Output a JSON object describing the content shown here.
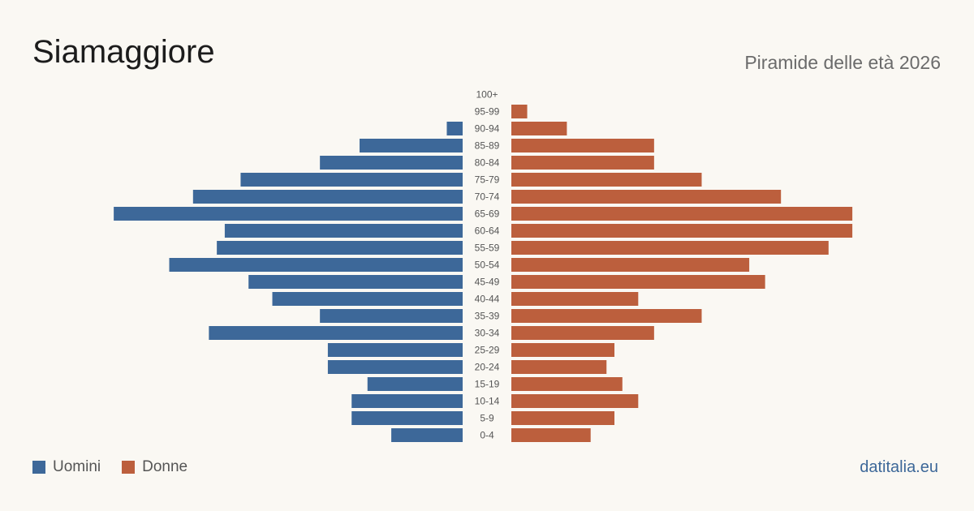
{
  "header": {
    "title": "Siamaggiore",
    "subtitle": "Piramide delle età 2026"
  },
  "legend": {
    "men_label": "Uomini",
    "women_label": "Donne"
  },
  "source": "datitalia.eu",
  "colors": {
    "men": "#3d6899",
    "women": "#bc5f3d"
  },
  "chart_data": {
    "type": "bar",
    "orientation": "horizontal-pyramid",
    "categories": [
      "100+",
      "95-99",
      "90-94",
      "85-89",
      "80-84",
      "75-79",
      "70-74",
      "65-69",
      "60-64",
      "55-59",
      "50-54",
      "45-49",
      "40-44",
      "35-39",
      "30-34",
      "25-29",
      "20-24",
      "15-19",
      "10-14",
      "5-9",
      "0-4"
    ],
    "series": [
      {
        "name": "Uomini",
        "values": [
          0,
          0,
          2,
          13,
          18,
          28,
          34,
          44,
          30,
          31,
          37,
          27,
          24,
          18,
          32,
          17,
          17,
          12,
          14,
          14,
          9
        ]
      },
      {
        "name": "Donne",
        "values": [
          0,
          2,
          7,
          18,
          18,
          24,
          34,
          43,
          43,
          40,
          30,
          32,
          16,
          24,
          18,
          13,
          12,
          14,
          16,
          13,
          10
        ]
      }
    ],
    "legend_position": "bottom-left",
    "grid": false
  }
}
